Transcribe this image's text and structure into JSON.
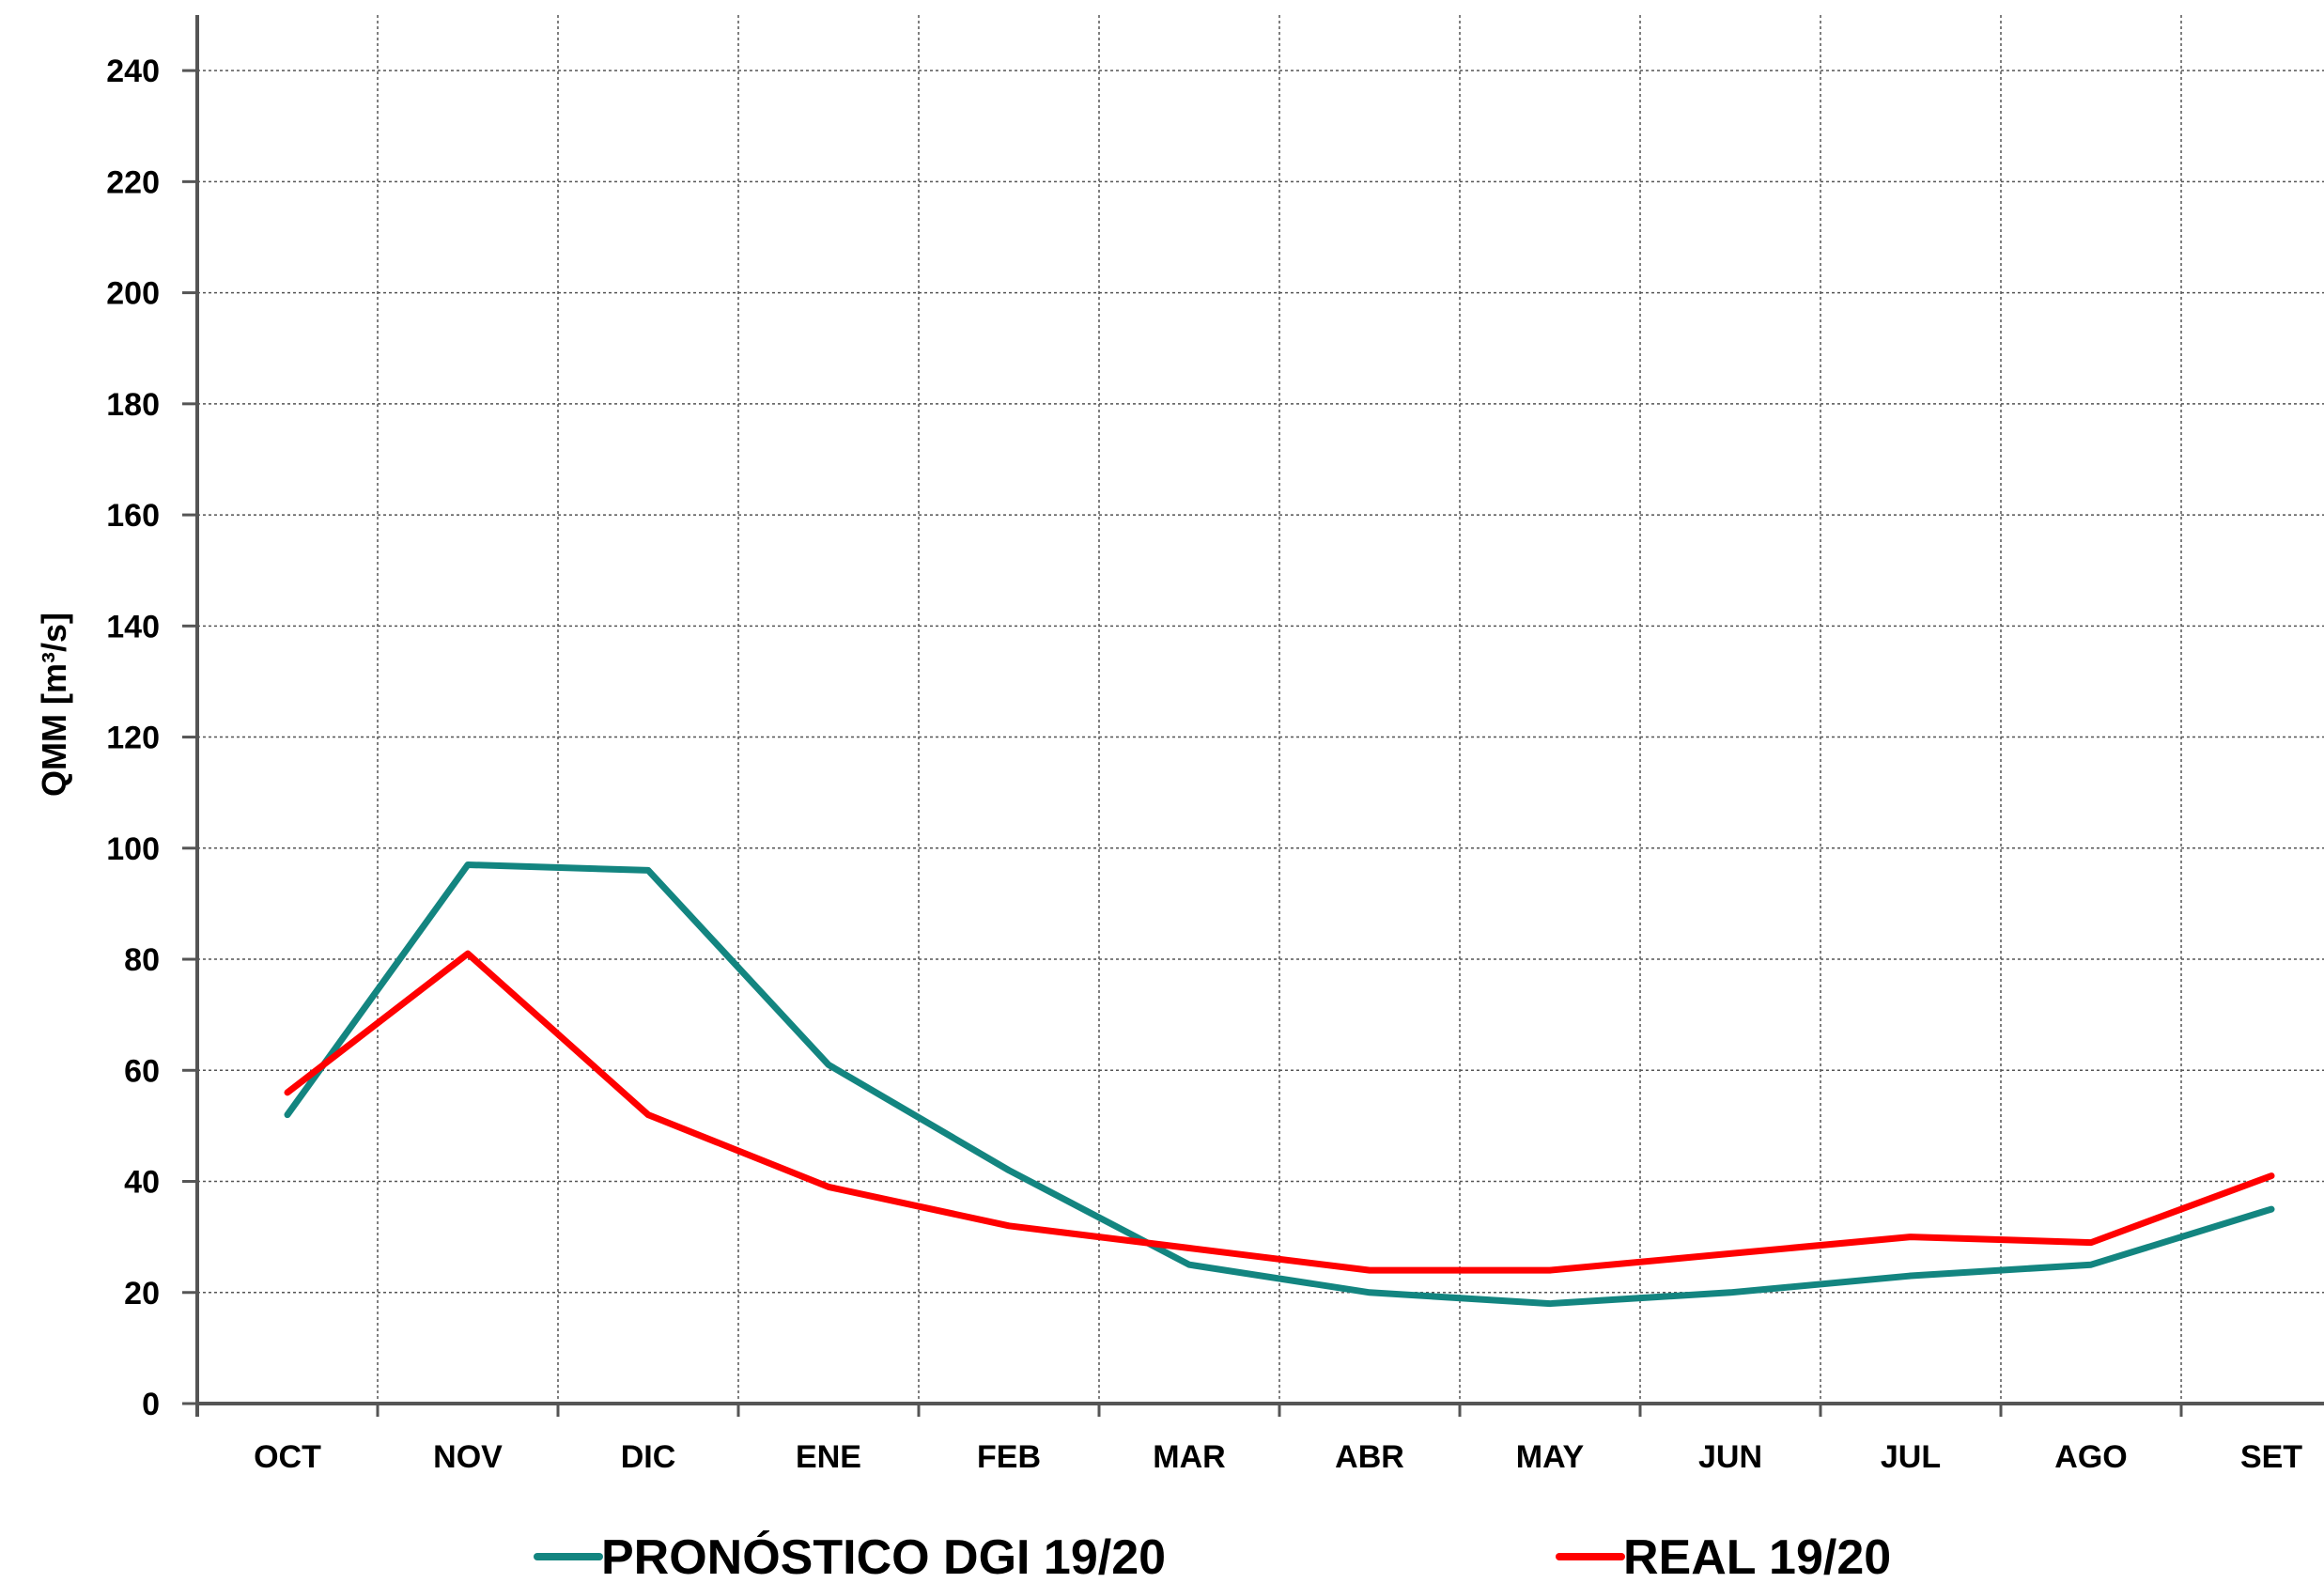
{
  "chart_data": {
    "type": "line",
    "title": "",
    "xlabel": "",
    "ylabel": "QMM [m³/s]",
    "categories": [
      "OCT",
      "NOV",
      "DIC",
      "ENE",
      "FEB",
      "MAR",
      "ABR",
      "MAY",
      "JUN",
      "JUL",
      "AGO",
      "SET"
    ],
    "ylim": [
      0,
      250
    ],
    "yticks": [
      0,
      20,
      40,
      60,
      80,
      100,
      120,
      140,
      160,
      180,
      200,
      220,
      240
    ],
    "grid": true,
    "legend_position": "bottom",
    "series": [
      {
        "name": "PRONÓSTICO DGI 19/20",
        "color": "#138580",
        "values": [
          52,
          97,
          96,
          61,
          42,
          25,
          20,
          18,
          20,
          23,
          25,
          35
        ]
      },
      {
        "name": "REAL 19/20",
        "color": "#ff0000",
        "values": [
          56,
          81,
          52,
          39,
          32,
          28,
          24,
          24,
          27,
          30,
          29,
          41
        ]
      }
    ]
  }
}
